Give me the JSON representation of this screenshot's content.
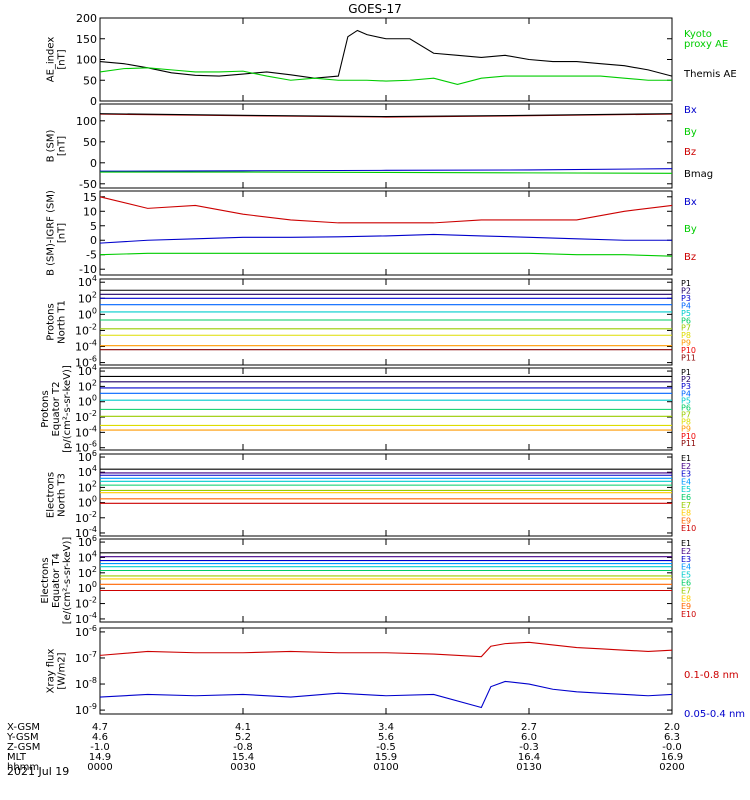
{
  "title": "GOES-17",
  "date_label": "2021 Jul 19",
  "ephemeris": {
    "row_labels": [
      "X-GSM",
      "Y-GSM",
      "Z-GSM",
      "MLT",
      "hhmm"
    ],
    "columns": [
      [
        "4.7",
        "4.6",
        "-1.0",
        "14.9",
        "0000"
      ],
      [
        "4.1",
        "5.2",
        "-0.8",
        "15.4",
        "0030"
      ],
      [
        "3.4",
        "5.6",
        "-0.5",
        "15.9",
        "0100"
      ],
      [
        "2.7",
        "6.0",
        "-0.3",
        "16.4",
        "0130"
      ],
      [
        "2.0",
        "6.3",
        "-0.0",
        "16.9",
        "0200"
      ]
    ]
  },
  "colors": {
    "black": "#000000",
    "red": "#cc0000",
    "green": "#00cc00",
    "blue": "#0000cc",
    "p_colors": [
      "#000000",
      "#1f0066",
      "#0000cc",
      "#0066ff",
      "#00cccc",
      "#00cc66",
      "#99cc00",
      "#dddd00",
      "#ff9900",
      "#ee0000",
      "#880000"
    ],
    "e_colors": [
      "#000000",
      "#440088",
      "#0000cc",
      "#0099ff",
      "#00cccc",
      "#00cc66",
      "#99cc00",
      "#ffcc00",
      "#ff6600",
      "#cc0000"
    ]
  },
  "chart_data": [
    {
      "type": "line",
      "ylabel": [
        "AE_index",
        "[nT]"
      ],
      "ylim": [
        0,
        200
      ],
      "yticks": [
        "0",
        "50",
        "100",
        "150",
        "200"
      ],
      "x": [
        0,
        5,
        10,
        15,
        20,
        25,
        30,
        35,
        40,
        45,
        50,
        52,
        54,
        56,
        60,
        65,
        70,
        75,
        80,
        85,
        90,
        95,
        100,
        105,
        110,
        115,
        120
      ],
      "series": [
        {
          "name": "Themis AE",
          "color": "black",
          "values": [
            95,
            90,
            80,
            68,
            62,
            60,
            65,
            70,
            63,
            55,
            60,
            155,
            170,
            160,
            150,
            150,
            115,
            110,
            105,
            110,
            100,
            95,
            95,
            90,
            85,
            75,
            60
          ]
        },
        {
          "name": "Kyoto proxy AE",
          "color": "green",
          "values": [
            70,
            78,
            80,
            75,
            70,
            70,
            72,
            60,
            50,
            55,
            50,
            50,
            50,
            50,
            48,
            50,
            55,
            40,
            55,
            60,
            60,
            60,
            60,
            60,
            55,
            50,
            50
          ]
        }
      ],
      "legend": [
        {
          "text": "Kyoto",
          "color": "green"
        },
        {
          "text": "proxy AE",
          "color": "green"
        },
        {
          "text": "Themis AE",
          "color": "black"
        }
      ]
    },
    {
      "type": "line",
      "ylabel": [
        "B (SM)",
        "[nT]"
      ],
      "ylim": [
        -60,
        140
      ],
      "yticks": [
        "-50",
        "0",
        "50",
        "100"
      ],
      "x": [
        0,
        30,
        60,
        90,
        120
      ],
      "series": [
        {
          "name": "Bx",
          "color": "blue",
          "values": [
            -20,
            -19,
            -18,
            -17,
            -14
          ]
        },
        {
          "name": "By",
          "color": "green",
          "values": [
            -22,
            -22,
            -23,
            -24,
            -25
          ]
        },
        {
          "name": "Bz",
          "color": "red",
          "values": [
            116,
            112,
            109,
            112,
            116
          ]
        },
        {
          "name": "Bmag",
          "color": "black",
          "values": [
            117,
            113,
            110,
            113,
            117
          ]
        }
      ],
      "legend": [
        {
          "text": "Bx",
          "color": "blue"
        },
        {
          "text": "By",
          "color": "green"
        },
        {
          "text": "Bz",
          "color": "red"
        },
        {
          "text": "Bmag",
          "color": "black"
        }
      ]
    },
    {
      "type": "line",
      "ylabel": [
        "B (SM)-IGRF (SM)",
        "[nT]"
      ],
      "ylim": [
        -12,
        17
      ],
      "yticks": [
        "-10",
        "-5",
        "0",
        "5",
        "10",
        "15"
      ],
      "x": [
        0,
        10,
        20,
        30,
        40,
        50,
        60,
        70,
        80,
        90,
        100,
        110,
        120
      ],
      "series": [
        {
          "name": "Bx",
          "color": "blue",
          "values": [
            -1,
            0,
            0.5,
            1,
            1,
            1.2,
            1.5,
            2,
            1.5,
            1,
            0.5,
            0,
            0
          ]
        },
        {
          "name": "By",
          "color": "green",
          "values": [
            -5,
            -4.5,
            -4.5,
            -4.5,
            -4.5,
            -4.5,
            -4.5,
            -4.5,
            -4.5,
            -4.5,
            -5,
            -5,
            -5.5
          ]
        },
        {
          "name": "Bz",
          "color": "red",
          "values": [
            15,
            11,
            12,
            9,
            7,
            6,
            6,
            6,
            7,
            7,
            7,
            10,
            12
          ]
        }
      ],
      "legend": [
        {
          "text": "Bx",
          "color": "blue"
        },
        {
          "text": "By",
          "color": "green"
        },
        {
          "text": "Bz",
          "color": "red"
        }
      ]
    },
    {
      "type": "line",
      "ylabel": [
        "Protons",
        "North T1"
      ],
      "log": true,
      "ylim": [
        -6.3,
        4.4
      ],
      "yticks": [
        {
          "e": 4
        },
        {
          "e": 2
        },
        {
          "e": 0
        },
        {
          "e": -2
        },
        {
          "e": -4
        },
        {
          "e": -6
        }
      ],
      "series": [
        {
          "name": "P1",
          "color_index": 0,
          "log_values": [
            3
          ]
        },
        {
          "name": "P2",
          "color_index": 1,
          "log_values": [
            2.5
          ]
        },
        {
          "name": "P3",
          "color_index": 2,
          "log_values": [
            2
          ]
        },
        {
          "name": "P4",
          "color_index": 3,
          "log_values": [
            1.2
          ]
        },
        {
          "name": "P5",
          "color_index": 4,
          "log_values": [
            0.3
          ]
        },
        {
          "name": "P6",
          "color_index": 5,
          "log_values": [
            -0.7
          ]
        },
        {
          "name": "P7",
          "color_index": 6,
          "log_values": [
            -1.8
          ]
        },
        {
          "name": "P8",
          "color_index": 7,
          "log_values": [
            -2.6
          ]
        },
        {
          "name": "P9",
          "color_index": 8,
          "log_values": [
            -3.9
          ]
        },
        {
          "name": "P10",
          "color_index": 10,
          "log_values": [
            -4.4
          ]
        }
      ],
      "legend": [
        "P1",
        "P2",
        "P3",
        "P4",
        "P5",
        "P6",
        "P7",
        "P8",
        "P9",
        "P10",
        "P11"
      ]
    },
    {
      "type": "line",
      "ylabel": [
        "Protons",
        "Equator T2",
        "[p/(cm²-s-sr-keV)]"
      ],
      "log": true,
      "ylim": [
        -6.3,
        4.4
      ],
      "yticks": [
        {
          "e": 4
        },
        {
          "e": 2
        },
        {
          "e": 0
        },
        {
          "e": -2
        },
        {
          "e": -4
        },
        {
          "e": -6
        }
      ],
      "series": [
        {
          "name": "P1",
          "color_index": 0,
          "log_values": [
            3.3
          ]
        },
        {
          "name": "P2",
          "color_index": 1,
          "log_values": [
            2.6
          ]
        },
        {
          "name": "P3",
          "color_index": 2,
          "log_values": [
            1.8
          ]
        },
        {
          "name": "P4",
          "color_index": 3,
          "log_values": [
            1.1
          ]
        },
        {
          "name": "P5",
          "color_index": 4,
          "log_values": [
            0.2
          ]
        },
        {
          "name": "P6",
          "color_index": 5,
          "log_values": [
            -1
          ]
        },
        {
          "name": "P7",
          "color_index": 6,
          "log_values": [
            -1.9
          ]
        },
        {
          "name": "P8",
          "color_index": 7,
          "log_values": [
            -3.1
          ]
        },
        {
          "name": "P9",
          "color_index": 8,
          "log_values": [
            -3.7
          ]
        }
      ],
      "legend": [
        "P1",
        "P2",
        "P3",
        "P4",
        "P5",
        "P6",
        "P7",
        "P8",
        "P9",
        "P10",
        "P11"
      ]
    },
    {
      "type": "line",
      "ylabel": [
        "Electrons",
        "North T3"
      ],
      "log": true,
      "ylim": [
        -4.4,
        6.4
      ],
      "yticks": [
        {
          "e": 6
        },
        {
          "e": 4
        },
        {
          "e": 2
        },
        {
          "e": 0
        },
        {
          "e": -2
        },
        {
          "e": -4
        }
      ],
      "series": [
        {
          "name": "E1",
          "color_index": 0,
          "log_values": [
            4.4
          ]
        },
        {
          "name": "E2",
          "color_index": 1,
          "log_values": [
            3.9
          ]
        },
        {
          "name": "E3",
          "color_index": 2,
          "log_values": [
            3.6
          ]
        },
        {
          "name": "E4",
          "color_index": 3,
          "log_values": [
            3.2
          ]
        },
        {
          "name": "E5",
          "color_index": 4,
          "log_values": [
            2.8
          ]
        },
        {
          "name": "E6",
          "color_index": 5,
          "log_values": [
            2.3
          ]
        },
        {
          "name": "E7",
          "color_index": 6,
          "log_values": [
            1.6
          ]
        },
        {
          "name": "E8",
          "color_index": 7,
          "log_values": [
            1.3
          ]
        },
        {
          "name": "E9",
          "color_index": 8,
          "log_values": [
            0.5
          ]
        },
        {
          "name": "E10",
          "color_index": 9,
          "log_values": [
            -0.1
          ]
        }
      ],
      "legend": [
        "E1",
        "E2",
        "E3",
        "E4",
        "E5",
        "E6",
        "E7",
        "E8",
        "E9",
        "E10"
      ]
    },
    {
      "type": "line",
      "ylabel": [
        "Electrons",
        "Equator T4",
        "[e/(cm²-s-sr-keV)]"
      ],
      "log": true,
      "ylim": [
        -4.4,
        6.4
      ],
      "yticks": [
        {
          "e": 6
        },
        {
          "e": 4
        },
        {
          "e": 2
        },
        {
          "e": 0
        },
        {
          "e": -2
        },
        {
          "e": -4
        }
      ],
      "series": [
        {
          "name": "E1",
          "color_index": 0,
          "log_values": [
            4.6
          ]
        },
        {
          "name": "E2",
          "color_index": 1,
          "log_values": [
            4.1
          ]
        },
        {
          "name": "E3",
          "color_index": 2,
          "log_values": [
            3.6
          ]
        },
        {
          "name": "E4",
          "color_index": 3,
          "log_values": [
            3.2
          ]
        },
        {
          "name": "E5",
          "color_index": 4,
          "log_values": [
            2.8
          ]
        },
        {
          "name": "E6",
          "color_index": 5,
          "log_values": [
            2.3
          ]
        },
        {
          "name": "E7",
          "color_index": 6,
          "log_values": [
            1.6
          ]
        },
        {
          "name": "E8",
          "color_index": 7,
          "log_values": [
            1.2
          ]
        },
        {
          "name": "E9",
          "color_index": 8,
          "log_values": [
            0.5
          ]
        },
        {
          "name": "E10",
          "color_index": 9,
          "log_values": [
            -0.3
          ]
        }
      ],
      "legend": [
        "E1",
        "E2",
        "E3",
        "E4",
        "E5",
        "E6",
        "E7",
        "E8",
        "E9",
        "E10"
      ]
    },
    {
      "type": "line",
      "ylabel": [
        "Xray flux",
        "[W/m2]"
      ],
      "log": true,
      "ylim": [
        -9.15,
        -5.85
      ],
      "yticks": [
        {
          "e": -6
        },
        {
          "e": -7
        },
        {
          "e": -8
        },
        {
          "e": -9
        }
      ],
      "x": [
        0,
        10,
        20,
        30,
        40,
        50,
        60,
        70,
        80,
        82,
        85,
        90,
        95,
        100,
        105,
        110,
        115,
        120
      ],
      "series": [
        {
          "name": "0.1-0.8 nm",
          "color": "red",
          "log_values": [
            -6.9,
            -6.75,
            -6.8,
            -6.8,
            -6.75,
            -6.8,
            -6.8,
            -6.85,
            -6.95,
            -6.55,
            -6.45,
            -6.4,
            -6.5,
            -6.6,
            -6.65,
            -6.7,
            -6.75,
            -6.7
          ]
        },
        {
          "name": "0.05-0.4 nm",
          "color": "blue",
          "log_values": [
            -8.5,
            -8.4,
            -8.45,
            -8.4,
            -8.5,
            -8.35,
            -8.45,
            -8.4,
            -8.9,
            -8.1,
            -7.9,
            -8.0,
            -8.2,
            -8.3,
            -8.35,
            -8.4,
            -8.45,
            -8.4
          ]
        }
      ],
      "legend": [
        {
          "text": "0.1-0.8 nm",
          "color": "red"
        },
        {
          "text": "0.05-0.4 nm",
          "color": "blue"
        }
      ]
    }
  ]
}
